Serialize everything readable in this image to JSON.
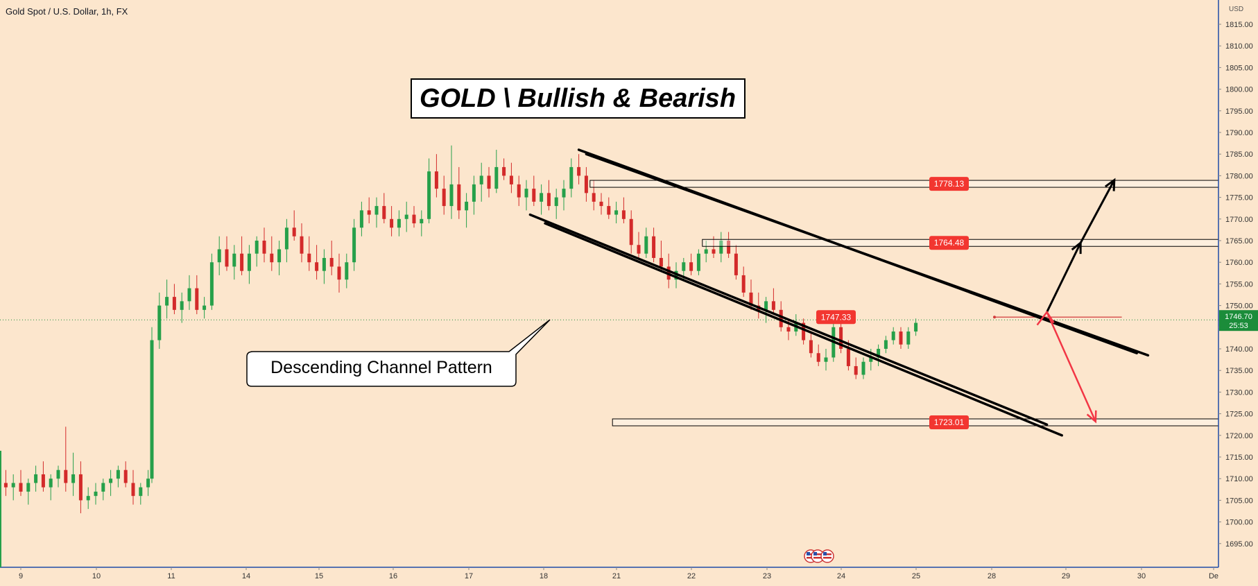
{
  "header": {
    "symbol_title": "Gold Spot / U.S. Dollar, 1h, FX"
  },
  "annotations": {
    "headline": "GOLD \\ Bullish & Bearish",
    "pattern_callout": "Descending Channel Pattern"
  },
  "colors": {
    "background": "#fce6cd",
    "up_candle": "#26a04a",
    "down_candle": "#d32a2a",
    "level_label": "#f23630",
    "current_price_label": "#1b8c3a",
    "bullish_arrow": "#000000",
    "bearish_arrow": "#f23645",
    "gridline_price": "#1b8c3a"
  },
  "icons": [
    "us-flag-event-icon",
    "us-flag-event-icon",
    "us-flag-event-icon"
  ],
  "chart_data": {
    "type": "candlestick",
    "title": "Gold Spot / U.S. Dollar, 1h, FX",
    "y_axis": {
      "currency": "USD",
      "ylim": [
        1690,
        1819
      ],
      "ticks": [
        "1815.00",
        "1810.00",
        "1805.00",
        "1800.00",
        "1795.00",
        "1790.00",
        "1785.00",
        "1780.00",
        "1775.00",
        "1770.00",
        "1765.00",
        "1760.00",
        "1755.00",
        "1750.00",
        "1745.00",
        "1740.00",
        "1735.00",
        "1730.00",
        "1725.00",
        "1720.00",
        "1715.00",
        "1710.00",
        "1705.00",
        "1700.00",
        "1695.00"
      ]
    },
    "x_axis": {
      "ticks": [
        "9",
        "10",
        "11",
        "14",
        "15",
        "16",
        "17",
        "18",
        "21",
        "22",
        "23",
        "24",
        "25",
        "28",
        "29",
        "30",
        "De"
      ]
    },
    "current_price": {
      "value": "1746.70",
      "countdown": "25:53"
    },
    "levels": [
      {
        "value": 1778.13,
        "label": "1778.13",
        "zone_from_date": "16.6",
        "zone_to_date": "25.1"
      },
      {
        "value": 1764.48,
        "label": "1764.48",
        "zone_from_date": "18.1",
        "zone_to_date": "25.1"
      },
      {
        "value": 1747.33,
        "label": "1747.33",
        "zone_from_date": "22.0",
        "zone_to_date": "23.7"
      },
      {
        "value": 1723.01,
        "label": "1723.01",
        "zone_from_date": "16.9",
        "zone_to_date": "25.1"
      }
    ],
    "channel": {
      "upper": [
        [
          16.45,
          1786.0
        ],
        [
          23.9,
          1739.0
        ]
      ],
      "upper_inner": [
        [
          16.55,
          1785.0
        ],
        [
          24.05,
          1738.5
        ]
      ],
      "lower": [
        [
          15.8,
          1771.0
        ],
        [
          22.7,
          1722.5
        ]
      ],
      "lower_inner": [
        [
          16.0,
          1769.0
        ],
        [
          22.9,
          1720.0
        ]
      ]
    },
    "scenario_bullish": [
      [
        22.7,
        1748.5
      ],
      [
        23.15,
        1764.5
      ],
      [
        23.6,
        1779.0
      ]
    ],
    "scenario_bearish": [
      [
        22.7,
        1748.5
      ],
      [
        23.35,
        1723.2
      ]
    ],
    "candles": [
      {
        "t": 8.0,
        "o": 1714,
        "h": 1717,
        "l": 1710,
        "c": 1712
      },
      {
        "t": 8.1,
        "o": 1712,
        "h": 1716,
        "l": 1709,
        "c": 1711
      },
      {
        "t": 8.2,
        "o": 1711,
        "h": 1714,
        "l": 1708,
        "c": 1710
      },
      {
        "t": 8.3,
        "o": 1710,
        "h": 1713,
        "l": 1707,
        "c": 1712
      },
      {
        "t": 8.4,
        "o": 1712,
        "h": 1714,
        "l": 1708,
        "c": 1709
      },
      {
        "t": 8.5,
        "o": 1709,
        "h": 1712,
        "l": 1707,
        "c": 1708
      },
      {
        "t": 8.6,
        "o": 1708,
        "h": 1711,
        "l": 1706,
        "c": 1710
      },
      {
        "t": 8.7,
        "o": 1710,
        "h": 1713,
        "l": 1708,
        "c": 1709
      },
      {
        "t": 8.8,
        "o": 1709,
        "h": 1712,
        "l": 1706,
        "c": 1708
      },
      {
        "t": 8.9,
        "o": 1708,
        "h": 1711,
        "l": 1705,
        "c": 1709
      },
      {
        "t": 9.0,
        "o": 1709,
        "h": 1712,
        "l": 1706,
        "c": 1707
      },
      {
        "t": 9.1,
        "o": 1707,
        "h": 1710,
        "l": 1704,
        "c": 1709
      },
      {
        "t": 9.2,
        "o": 1709,
        "h": 1713,
        "l": 1707,
        "c": 1711
      },
      {
        "t": 9.3,
        "o": 1711,
        "h": 1714,
        "l": 1707,
        "c": 1708
      },
      {
        "t": 9.4,
        "o": 1708,
        "h": 1711,
        "l": 1705,
        "c": 1710
      },
      {
        "t": 9.5,
        "o": 1710,
        "h": 1713,
        "l": 1708,
        "c": 1712
      },
      {
        "t": 9.6,
        "o": 1712,
        "h": 1722,
        "l": 1707,
        "c": 1709
      },
      {
        "t": 9.7,
        "o": 1709,
        "h": 1716,
        "l": 1706,
        "c": 1711
      },
      {
        "t": 9.8,
        "o": 1711,
        "h": 1714,
        "l": 1702,
        "c": 1705
      },
      {
        "t": 9.9,
        "o": 1705,
        "h": 1708,
        "l": 1703,
        "c": 1706
      },
      {
        "t": 10.0,
        "o": 1706,
        "h": 1709,
        "l": 1704,
        "c": 1707
      },
      {
        "t": 10.1,
        "o": 1707,
        "h": 1710,
        "l": 1705,
        "c": 1709
      },
      {
        "t": 10.2,
        "o": 1709,
        "h": 1712,
        "l": 1706,
        "c": 1710
      },
      {
        "t": 10.3,
        "o": 1710,
        "h": 1713,
        "l": 1708,
        "c": 1712
      },
      {
        "t": 10.4,
        "o": 1712,
        "h": 1714,
        "l": 1708,
        "c": 1709
      },
      {
        "t": 10.5,
        "o": 1709,
        "h": 1712,
        "l": 1704,
        "c": 1706
      },
      {
        "t": 10.6,
        "o": 1706,
        "h": 1709,
        "l": 1704,
        "c": 1708
      },
      {
        "t": 10.7,
        "o": 1708,
        "h": 1712,
        "l": 1706,
        "c": 1710
      },
      {
        "t": 10.75,
        "o": 1710,
        "h": 1745,
        "l": 1709,
        "c": 1742
      },
      {
        "t": 10.85,
        "o": 1742,
        "h": 1753,
        "l": 1740,
        "c": 1750
      },
      {
        "t": 10.95,
        "o": 1750,
        "h": 1756,
        "l": 1747,
        "c": 1752
      },
      {
        "t": 11.05,
        "o": 1752,
        "h": 1755,
        "l": 1748,
        "c": 1749
      },
      {
        "t": 11.15,
        "o": 1749,
        "h": 1753,
        "l": 1746,
        "c": 1751
      },
      {
        "t": 11.25,
        "o": 1751,
        "h": 1757,
        "l": 1749,
        "c": 1754
      },
      {
        "t": 11.35,
        "o": 1754,
        "h": 1757,
        "l": 1748,
        "c": 1749
      },
      {
        "t": 11.45,
        "o": 1749,
        "h": 1752,
        "l": 1747,
        "c": 1750
      },
      {
        "t": 11.55,
        "o": 1750,
        "h": 1762,
        "l": 1749,
        "c": 1760
      },
      {
        "t": 11.65,
        "o": 1760,
        "h": 1766,
        "l": 1757,
        "c": 1763
      },
      {
        "t": 11.75,
        "o": 1763,
        "h": 1766,
        "l": 1758,
        "c": 1759
      },
      {
        "t": 11.85,
        "o": 1759,
        "h": 1764,
        "l": 1756,
        "c": 1762
      },
      {
        "t": 11.95,
        "o": 1762,
        "h": 1766,
        "l": 1757,
        "c": 1758
      },
      {
        "t": 12.05,
        "o": 1758,
        "h": 1764,
        "l": 1755,
        "c": 1762
      },
      {
        "t": 12.15,
        "o": 1762,
        "h": 1766,
        "l": 1759,
        "c": 1765
      },
      {
        "t": 12.25,
        "o": 1765,
        "h": 1768,
        "l": 1760,
        "c": 1762
      },
      {
        "t": 12.35,
        "o": 1762,
        "h": 1766,
        "l": 1758,
        "c": 1760
      },
      {
        "t": 12.45,
        "o": 1760,
        "h": 1765,
        "l": 1757,
        "c": 1763
      },
      {
        "t": 12.55,
        "o": 1763,
        "h": 1770,
        "l": 1760,
        "c": 1768
      },
      {
        "t": 12.65,
        "o": 1768,
        "h": 1772,
        "l": 1765,
        "c": 1766
      },
      {
        "t": 12.75,
        "o": 1766,
        "h": 1769,
        "l": 1760,
        "c": 1762
      },
      {
        "t": 12.85,
        "o": 1762,
        "h": 1766,
        "l": 1758,
        "c": 1760
      },
      {
        "t": 12.95,
        "o": 1760,
        "h": 1764,
        "l": 1756,
        "c": 1758
      },
      {
        "t": 13.05,
        "o": 1758,
        "h": 1763,
        "l": 1755,
        "c": 1761
      },
      {
        "t": 13.15,
        "o": 1761,
        "h": 1765,
        "l": 1757,
        "c": 1759
      },
      {
        "t": 13.25,
        "o": 1759,
        "h": 1762,
        "l": 1753,
        "c": 1756
      },
      {
        "t": 13.35,
        "o": 1756,
        "h": 1762,
        "l": 1754,
        "c": 1760
      },
      {
        "t": 13.45,
        "o": 1760,
        "h": 1770,
        "l": 1758,
        "c": 1768
      },
      {
        "t": 13.55,
        "o": 1768,
        "h": 1774,
        "l": 1766,
        "c": 1772
      },
      {
        "t": 13.65,
        "o": 1772,
        "h": 1775,
        "l": 1769,
        "c": 1771
      },
      {
        "t": 13.75,
        "o": 1771,
        "h": 1775,
        "l": 1768,
        "c": 1773
      },
      {
        "t": 13.85,
        "o": 1773,
        "h": 1776,
        "l": 1769,
        "c": 1770
      },
      {
        "t": 13.95,
        "o": 1770,
        "h": 1773,
        "l": 1766,
        "c": 1768
      },
      {
        "t": 14.05,
        "o": 1768,
        "h": 1772,
        "l": 1766,
        "c": 1770
      },
      {
        "t": 14.15,
        "o": 1770,
        "h": 1774,
        "l": 1767,
        "c": 1771
      },
      {
        "t": 14.25,
        "o": 1771,
        "h": 1773,
        "l": 1768,
        "c": 1769
      },
      {
        "t": 14.35,
        "o": 1769,
        "h": 1772,
        "l": 1766,
        "c": 1770
      },
      {
        "t": 14.45,
        "o": 1770,
        "h": 1784,
        "l": 1769,
        "c": 1781
      },
      {
        "t": 14.55,
        "o": 1781,
        "h": 1785,
        "l": 1775,
        "c": 1777
      },
      {
        "t": 14.65,
        "o": 1777,
        "h": 1780,
        "l": 1771,
        "c": 1773
      },
      {
        "t": 14.75,
        "o": 1773,
        "h": 1787,
        "l": 1770,
        "c": 1778
      },
      {
        "t": 14.85,
        "o": 1778,
        "h": 1782,
        "l": 1770,
        "c": 1772
      },
      {
        "t": 14.95,
        "o": 1772,
        "h": 1776,
        "l": 1768,
        "c": 1774
      },
      {
        "t": 15.05,
        "o": 1774,
        "h": 1780,
        "l": 1771,
        "c": 1778
      },
      {
        "t": 15.15,
        "o": 1778,
        "h": 1783,
        "l": 1774,
        "c": 1780
      },
      {
        "t": 15.25,
        "o": 1780,
        "h": 1782,
        "l": 1775,
        "c": 1777
      },
      {
        "t": 15.35,
        "o": 1777,
        "h": 1786,
        "l": 1776,
        "c": 1782
      },
      {
        "t": 15.45,
        "o": 1782,
        "h": 1784,
        "l": 1779,
        "c": 1780
      },
      {
        "t": 15.55,
        "o": 1780,
        "h": 1783,
        "l": 1776,
        "c": 1778
      },
      {
        "t": 15.65,
        "o": 1778,
        "h": 1780,
        "l": 1773,
        "c": 1775
      },
      {
        "t": 15.75,
        "o": 1775,
        "h": 1779,
        "l": 1772,
        "c": 1777
      },
      {
        "t": 15.85,
        "o": 1777,
        "h": 1780,
        "l": 1773,
        "c": 1774
      },
      {
        "t": 15.95,
        "o": 1774,
        "h": 1778,
        "l": 1771,
        "c": 1776
      },
      {
        "t": 16.05,
        "o": 1776,
        "h": 1779,
        "l": 1772,
        "c": 1773
      },
      {
        "t": 16.15,
        "o": 1773,
        "h": 1777,
        "l": 1770,
        "c": 1775
      },
      {
        "t": 16.25,
        "o": 1775,
        "h": 1779,
        "l": 1772,
        "c": 1777
      },
      {
        "t": 16.35,
        "o": 1777,
        "h": 1784,
        "l": 1775,
        "c": 1782
      },
      {
        "t": 16.45,
        "o": 1782,
        "h": 1785,
        "l": 1778,
        "c": 1780
      },
      {
        "t": 16.55,
        "o": 1780,
        "h": 1782,
        "l": 1774,
        "c": 1776
      },
      {
        "t": 16.65,
        "o": 1776,
        "h": 1779,
        "l": 1772,
        "c": 1774
      },
      {
        "t": 16.75,
        "o": 1774,
        "h": 1776,
        "l": 1771,
        "c": 1773
      },
      {
        "t": 16.85,
        "o": 1773,
        "h": 1775,
        "l": 1770,
        "c": 1771
      },
      {
        "t": 16.95,
        "o": 1771,
        "h": 1774,
        "l": 1769,
        "c": 1772
      },
      {
        "t": 17.05,
        "o": 1772,
        "h": 1775,
        "l": 1769,
        "c": 1770
      },
      {
        "t": 17.15,
        "o": 1770,
        "h": 1772,
        "l": 1762,
        "c": 1764
      },
      {
        "t": 17.25,
        "o": 1764,
        "h": 1767,
        "l": 1761,
        "c": 1762
      },
      {
        "t": 17.35,
        "o": 1762,
        "h": 1768,
        "l": 1761,
        "c": 1766
      },
      {
        "t": 17.45,
        "o": 1766,
        "h": 1768,
        "l": 1760,
        "c": 1761
      },
      {
        "t": 17.55,
        "o": 1761,
        "h": 1765,
        "l": 1758,
        "c": 1759
      },
      {
        "t": 17.65,
        "o": 1759,
        "h": 1762,
        "l": 1754,
        "c": 1756
      },
      {
        "t": 17.75,
        "o": 1756,
        "h": 1760,
        "l": 1754,
        "c": 1758
      },
      {
        "t": 17.85,
        "o": 1758,
        "h": 1761,
        "l": 1756,
        "c": 1760
      },
      {
        "t": 17.95,
        "o": 1760,
        "h": 1762,
        "l": 1757,
        "c": 1758
      },
      {
        "t": 18.05,
        "o": 1758,
        "h": 1763,
        "l": 1757,
        "c": 1762
      },
      {
        "t": 18.15,
        "o": 1762,
        "h": 1765,
        "l": 1760,
        "c": 1763
      },
      {
        "t": 18.25,
        "o": 1763,
        "h": 1766,
        "l": 1761,
        "c": 1762
      },
      {
        "t": 18.35,
        "o": 1762,
        "h": 1767,
        "l": 1760,
        "c": 1765
      },
      {
        "t": 18.45,
        "o": 1765,
        "h": 1767,
        "l": 1761,
        "c": 1762
      },
      {
        "t": 18.55,
        "o": 1762,
        "h": 1764,
        "l": 1756,
        "c": 1757
      },
      {
        "t": 18.65,
        "o": 1757,
        "h": 1759,
        "l": 1752,
        "c": 1753
      },
      {
        "t": 18.75,
        "o": 1753,
        "h": 1756,
        "l": 1749,
        "c": 1750
      },
      {
        "t": 18.85,
        "o": 1750,
        "h": 1753,
        "l": 1747,
        "c": 1749
      },
      {
        "t": 18.95,
        "o": 1749,
        "h": 1752,
        "l": 1746,
        "c": 1751
      },
      {
        "t": 19.05,
        "o": 1751,
        "h": 1754,
        "l": 1748,
        "c": 1749
      },
      {
        "t": 19.15,
        "o": 1749,
        "h": 1751,
        "l": 1744,
        "c": 1745
      },
      {
        "t": 19.25,
        "o": 1745,
        "h": 1747,
        "l": 1742,
        "c": 1744
      },
      {
        "t": 19.35,
        "o": 1744,
        "h": 1748,
        "l": 1743,
        "c": 1746
      },
      {
        "t": 19.45,
        "o": 1746,
        "h": 1747,
        "l": 1741,
        "c": 1742
      },
      {
        "t": 19.55,
        "o": 1742,
        "h": 1744,
        "l": 1738,
        "c": 1739
      },
      {
        "t": 19.65,
        "o": 1739,
        "h": 1741,
        "l": 1736,
        "c": 1737
      },
      {
        "t": 19.75,
        "o": 1737,
        "h": 1740,
        "l": 1735,
        "c": 1738
      },
      {
        "t": 19.85,
        "o": 1738,
        "h": 1747,
        "l": 1737,
        "c": 1745
      },
      {
        "t": 19.95,
        "o": 1745,
        "h": 1746,
        "l": 1739,
        "c": 1740
      },
      {
        "t": 20.05,
        "o": 1740,
        "h": 1742,
        "l": 1735,
        "c": 1736
      },
      {
        "t": 20.15,
        "o": 1736,
        "h": 1738,
        "l": 1733,
        "c": 1734
      },
      {
        "t": 20.25,
        "o": 1734,
        "h": 1738,
        "l": 1733,
        "c": 1737
      },
      {
        "t": 20.35,
        "o": 1737,
        "h": 1740,
        "l": 1735,
        "c": 1738
      },
      {
        "t": 20.45,
        "o": 1738,
        "h": 1741,
        "l": 1736,
        "c": 1740
      },
      {
        "t": 20.55,
        "o": 1740,
        "h": 1743,
        "l": 1739,
        "c": 1742
      },
      {
        "t": 20.65,
        "o": 1742,
        "h": 1745,
        "l": 1741,
        "c": 1744
      },
      {
        "t": 20.75,
        "o": 1744,
        "h": 1745,
        "l": 1740,
        "c": 1741
      },
      {
        "t": 20.85,
        "o": 1741,
        "h": 1745,
        "l": 1740,
        "c": 1744
      },
      {
        "t": 20.95,
        "o": 1744,
        "h": 1747,
        "l": 1743,
        "c": 1746
      }
    ]
  }
}
